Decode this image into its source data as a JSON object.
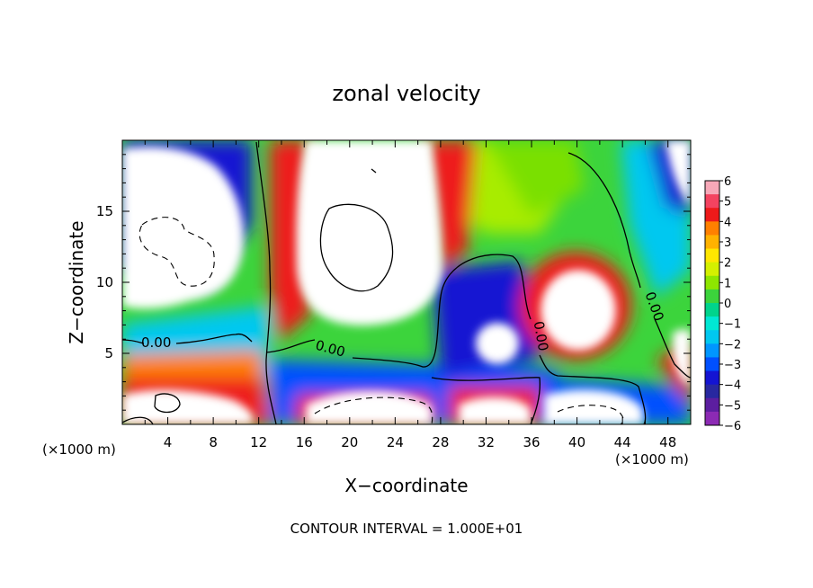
{
  "chart_data": {
    "type": "heatmap",
    "title": "zonal velocity",
    "xlabel": "X−coordinate",
    "ylabel": "Z−coordinate",
    "x_unit": "(×1000 m)",
    "x_unit_right": "(×1000 m)",
    "footer": "CONTOUR INTERVAL = 1.000E+01",
    "xlim": [
      0,
      50
    ],
    "ylim": [
      0,
      20
    ],
    "x_ticks": [
      4,
      8,
      12,
      16,
      20,
      24,
      28,
      32,
      36,
      40,
      44,
      48
    ],
    "x_tick_labels": [
      "4",
      "8",
      "12",
      "16",
      "20",
      "24",
      "28",
      "32",
      "36",
      "40",
      "44",
      "48"
    ],
    "y_ticks": [
      5,
      10,
      15
    ],
    "y_tick_labels": [
      "5",
      "10",
      "15"
    ],
    "colorbar": {
      "min": -6,
      "max": 6,
      "labels": [
        "6",
        "5",
        "4",
        "3",
        "2",
        "1",
        "0",
        "−1",
        "−2",
        "−3",
        "−4",
        "−5",
        "−6"
      ],
      "colors": [
        "#f7a8b8",
        "#f44360",
        "#ee1a1a",
        "#ff8000",
        "#ffb200",
        "#ffe600",
        "#d4f000",
        "#8ee600",
        "#3cd43c",
        "#00d48c",
        "#00e8d4",
        "#00c8f0",
        "#0096ff",
        "#0050ff",
        "#1414d2",
        "#2828a0",
        "#5c1ea0",
        "#8c2ab4"
      ]
    },
    "contour_labels": [
      "0.00",
      "0.00",
      "0.00",
      "0.00"
    ],
    "grid": false,
    "legend": "right"
  }
}
